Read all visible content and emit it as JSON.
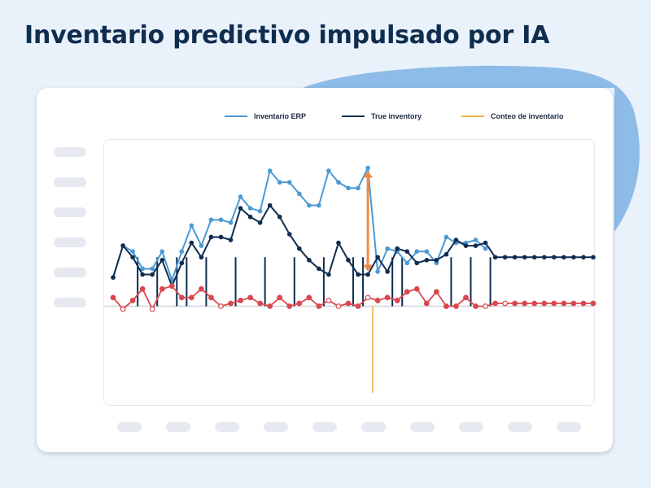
{
  "title": "Inventario predictivo impulsado por IA",
  "colors": {
    "background": "#e9f2fb",
    "blob": "#8dbce8",
    "erp": "#4a9ad4",
    "true_inventory": "#0f2d4f",
    "count": "#f0b24a",
    "demand": "#d9484f",
    "gap_arrow": "#ef8a45",
    "baseline": "#cfd3da"
  },
  "legend": {
    "erp_label": "Inventario ERP",
    "true_label": "True inventory",
    "count_label": "Conteo de inventario"
  },
  "chart_data": {
    "type": "line",
    "x": [
      0,
      1,
      2,
      3,
      4,
      5,
      6,
      7,
      8,
      9,
      10,
      11,
      12,
      13,
      14,
      15,
      16,
      17,
      18,
      19,
      20,
      21,
      22,
      23,
      24,
      25,
      26,
      27,
      28,
      29,
      30,
      31,
      32,
      33,
      34,
      35,
      36,
      37,
      38,
      39,
      40,
      41,
      42,
      43,
      44,
      45,
      46,
      47,
      48,
      49,
      50
    ],
    "xlim": [
      -1,
      49
    ],
    "ylim": [
      -34,
      58
    ],
    "grid": false,
    "legend_position": "top-right",
    "series": [
      {
        "name": "Inventario ERP",
        "values": [
          null,
          null,
          19,
          15,
          13,
          13,
          17,
          10,
          17,
          25,
          20,
          28,
          28,
          27,
          38,
          34,
          32,
          46,
          42,
          42,
          40,
          35,
          35,
          47,
          43,
          41,
          41,
          48,
          null,
          null,
          null,
          null,
          null,
          null,
          null,
          null,
          null,
          null,
          null,
          null,
          null,
          null,
          null,
          null,
          null,
          null,
          null,
          null,
          null,
          null,
          null
        ]
      },
      {
        "name": "True inventory",
        "values": [
          null,
          10,
          21,
          17,
          11,
          11,
          16,
          7,
          15,
          22,
          17,
          24,
          24,
          23,
          34,
          31,
          29,
          35,
          31,
          25,
          20,
          16,
          13,
          11,
          22,
          16,
          11,
          11,
          17,
          12,
          20,
          19,
          15,
          16,
          16,
          18,
          null,
          null,
          null,
          null,
          null,
          null,
          null,
          null,
          null,
          null,
          null,
          null,
          null,
          null,
          null
        ]
      }
    ],
    "true_inventory_values": [
      10,
      21,
      17,
      11,
      11,
      16,
      7,
      15,
      22,
      17,
      24,
      24,
      23,
      34,
      31,
      29,
      35,
      31,
      25,
      20,
      16,
      13,
      11,
      22,
      16,
      11,
      11,
      17,
      12,
      20,
      19,
      15,
      16,
      16,
      18,
      23,
      21,
      21,
      22,
      17,
      17,
      17,
      17,
      17,
      17,
      17,
      17,
      17,
      17,
      17
    ],
    "erp_values": [
      10,
      21,
      19,
      13,
      13,
      19,
      9,
      19,
      28,
      21,
      30,
      30,
      29,
      38,
      34,
      33,
      47,
      43,
      43,
      39,
      35,
      35,
      47,
      43,
      41,
      41,
      48,
      12,
      20,
      19,
      15,
      19,
      19,
      15,
      24,
      22,
      22,
      23,
      20
    ],
    "demand": [
      3,
      -1,
      2,
      6,
      -1,
      6,
      7,
      3,
      3,
      6,
      3,
      0,
      1,
      2,
      3,
      1,
      0,
      3,
      0,
      1,
      3,
      0,
      2,
      0,
      1,
      0,
      3,
      2,
      3,
      2,
      5,
      6,
      1,
      5,
      0,
      0,
      3,
      0,
      0,
      1,
      1,
      1,
      1,
      1,
      1,
      1,
      1,
      1,
      1,
      1
    ],
    "demand_open_markers": [
      1,
      4,
      11,
      22,
      23,
      26,
      38,
      40
    ],
    "count_events": [
      3,
      5,
      7,
      8,
      10,
      13,
      16,
      19,
      22,
      25,
      26,
      29,
      30,
      35,
      37,
      39
    ],
    "count_height": 17,
    "reconcile_point": {
      "x": 27,
      "y": -30
    }
  }
}
